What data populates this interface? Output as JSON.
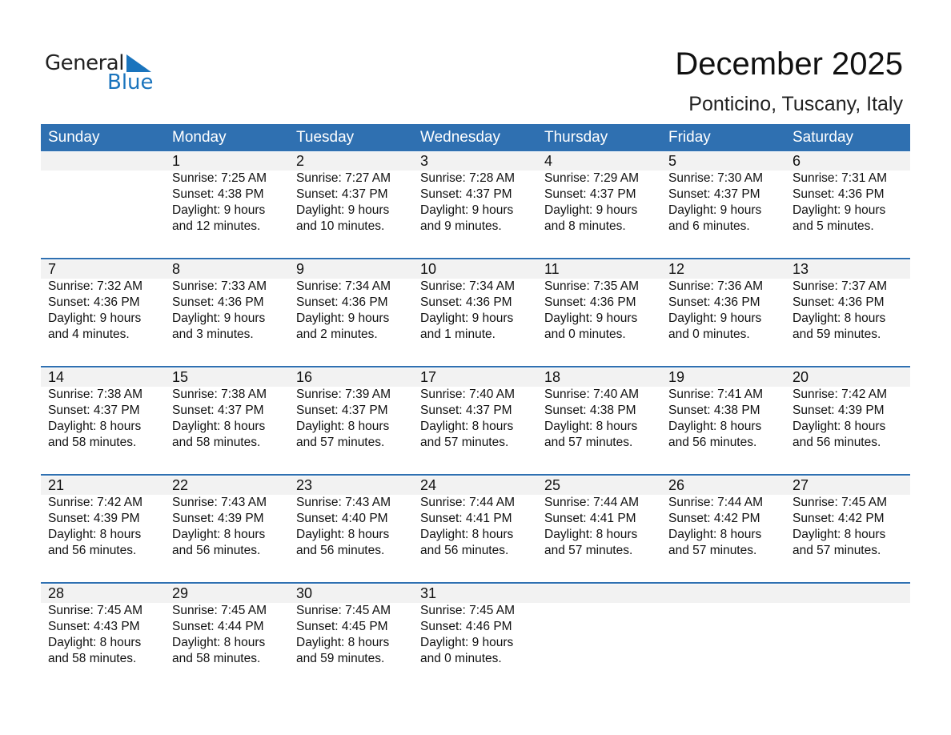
{
  "logo": {
    "text_general": "General",
    "text_blue": "Blue",
    "brand_color": "#1a74bd"
  },
  "title": "December 2025",
  "location": "Ponticino, Tuscany, Italy",
  "header_color": "#2f70b1",
  "weekdays": [
    "Sunday",
    "Monday",
    "Tuesday",
    "Wednesday",
    "Thursday",
    "Friday",
    "Saturday"
  ],
  "weeks": [
    [
      null,
      {
        "date": "1",
        "sunrise": "Sunrise: 7:25 AM",
        "sunset": "Sunset: 4:38 PM",
        "daylight1": "Daylight: 9 hours",
        "daylight2": "and 12 minutes."
      },
      {
        "date": "2",
        "sunrise": "Sunrise: 7:27 AM",
        "sunset": "Sunset: 4:37 PM",
        "daylight1": "Daylight: 9 hours",
        "daylight2": "and 10 minutes."
      },
      {
        "date": "3",
        "sunrise": "Sunrise: 7:28 AM",
        "sunset": "Sunset: 4:37 PM",
        "daylight1": "Daylight: 9 hours",
        "daylight2": "and 9 minutes."
      },
      {
        "date": "4",
        "sunrise": "Sunrise: 7:29 AM",
        "sunset": "Sunset: 4:37 PM",
        "daylight1": "Daylight: 9 hours",
        "daylight2": "and 8 minutes."
      },
      {
        "date": "5",
        "sunrise": "Sunrise: 7:30 AM",
        "sunset": "Sunset: 4:37 PM",
        "daylight1": "Daylight: 9 hours",
        "daylight2": "and 6 minutes."
      },
      {
        "date": "6",
        "sunrise": "Sunrise: 7:31 AM",
        "sunset": "Sunset: 4:36 PM",
        "daylight1": "Daylight: 9 hours",
        "daylight2": "and 5 minutes."
      }
    ],
    [
      {
        "date": "7",
        "sunrise": "Sunrise: 7:32 AM",
        "sunset": "Sunset: 4:36 PM",
        "daylight1": "Daylight: 9 hours",
        "daylight2": "and 4 minutes."
      },
      {
        "date": "8",
        "sunrise": "Sunrise: 7:33 AM",
        "sunset": "Sunset: 4:36 PM",
        "daylight1": "Daylight: 9 hours",
        "daylight2": "and 3 minutes."
      },
      {
        "date": "9",
        "sunrise": "Sunrise: 7:34 AM",
        "sunset": "Sunset: 4:36 PM",
        "daylight1": "Daylight: 9 hours",
        "daylight2": "and 2 minutes."
      },
      {
        "date": "10",
        "sunrise": "Sunrise: 7:34 AM",
        "sunset": "Sunset: 4:36 PM",
        "daylight1": "Daylight: 9 hours",
        "daylight2": "and 1 minute."
      },
      {
        "date": "11",
        "sunrise": "Sunrise: 7:35 AM",
        "sunset": "Sunset: 4:36 PM",
        "daylight1": "Daylight: 9 hours",
        "daylight2": "and 0 minutes."
      },
      {
        "date": "12",
        "sunrise": "Sunrise: 7:36 AM",
        "sunset": "Sunset: 4:36 PM",
        "daylight1": "Daylight: 9 hours",
        "daylight2": "and 0 minutes."
      },
      {
        "date": "13",
        "sunrise": "Sunrise: 7:37 AM",
        "sunset": "Sunset: 4:36 PM",
        "daylight1": "Daylight: 8 hours",
        "daylight2": "and 59 minutes."
      }
    ],
    [
      {
        "date": "14",
        "sunrise": "Sunrise: 7:38 AM",
        "sunset": "Sunset: 4:37 PM",
        "daylight1": "Daylight: 8 hours",
        "daylight2": "and 58 minutes."
      },
      {
        "date": "15",
        "sunrise": "Sunrise: 7:38 AM",
        "sunset": "Sunset: 4:37 PM",
        "daylight1": "Daylight: 8 hours",
        "daylight2": "and 58 minutes."
      },
      {
        "date": "16",
        "sunrise": "Sunrise: 7:39 AM",
        "sunset": "Sunset: 4:37 PM",
        "daylight1": "Daylight: 8 hours",
        "daylight2": "and 57 minutes."
      },
      {
        "date": "17",
        "sunrise": "Sunrise: 7:40 AM",
        "sunset": "Sunset: 4:37 PM",
        "daylight1": "Daylight: 8 hours",
        "daylight2": "and 57 minutes."
      },
      {
        "date": "18",
        "sunrise": "Sunrise: 7:40 AM",
        "sunset": "Sunset: 4:38 PM",
        "daylight1": "Daylight: 8 hours",
        "daylight2": "and 57 minutes."
      },
      {
        "date": "19",
        "sunrise": "Sunrise: 7:41 AM",
        "sunset": "Sunset: 4:38 PM",
        "daylight1": "Daylight: 8 hours",
        "daylight2": "and 56 minutes."
      },
      {
        "date": "20",
        "sunrise": "Sunrise: 7:42 AM",
        "sunset": "Sunset: 4:39 PM",
        "daylight1": "Daylight: 8 hours",
        "daylight2": "and 56 minutes."
      }
    ],
    [
      {
        "date": "21",
        "sunrise": "Sunrise: 7:42 AM",
        "sunset": "Sunset: 4:39 PM",
        "daylight1": "Daylight: 8 hours",
        "daylight2": "and 56 minutes."
      },
      {
        "date": "22",
        "sunrise": "Sunrise: 7:43 AM",
        "sunset": "Sunset: 4:39 PM",
        "daylight1": "Daylight: 8 hours",
        "daylight2": "and 56 minutes."
      },
      {
        "date": "23",
        "sunrise": "Sunrise: 7:43 AM",
        "sunset": "Sunset: 4:40 PM",
        "daylight1": "Daylight: 8 hours",
        "daylight2": "and 56 minutes."
      },
      {
        "date": "24",
        "sunrise": "Sunrise: 7:44 AM",
        "sunset": "Sunset: 4:41 PM",
        "daylight1": "Daylight: 8 hours",
        "daylight2": "and 56 minutes."
      },
      {
        "date": "25",
        "sunrise": "Sunrise: 7:44 AM",
        "sunset": "Sunset: 4:41 PM",
        "daylight1": "Daylight: 8 hours",
        "daylight2": "and 57 minutes."
      },
      {
        "date": "26",
        "sunrise": "Sunrise: 7:44 AM",
        "sunset": "Sunset: 4:42 PM",
        "daylight1": "Daylight: 8 hours",
        "daylight2": "and 57 minutes."
      },
      {
        "date": "27",
        "sunrise": "Sunrise: 7:45 AM",
        "sunset": "Sunset: 4:42 PM",
        "daylight1": "Daylight: 8 hours",
        "daylight2": "and 57 minutes."
      }
    ],
    [
      {
        "date": "28",
        "sunrise": "Sunrise: 7:45 AM",
        "sunset": "Sunset: 4:43 PM",
        "daylight1": "Daylight: 8 hours",
        "daylight2": "and 58 minutes."
      },
      {
        "date": "29",
        "sunrise": "Sunrise: 7:45 AM",
        "sunset": "Sunset: 4:44 PM",
        "daylight1": "Daylight: 8 hours",
        "daylight2": "and 58 minutes."
      },
      {
        "date": "30",
        "sunrise": "Sunrise: 7:45 AM",
        "sunset": "Sunset: 4:45 PM",
        "daylight1": "Daylight: 8 hours",
        "daylight2": "and 59 minutes."
      },
      {
        "date": "31",
        "sunrise": "Sunrise: 7:45 AM",
        "sunset": "Sunset: 4:46 PM",
        "daylight1": "Daylight: 9 hours",
        "daylight2": "and 0 minutes."
      },
      null,
      null,
      null
    ]
  ]
}
